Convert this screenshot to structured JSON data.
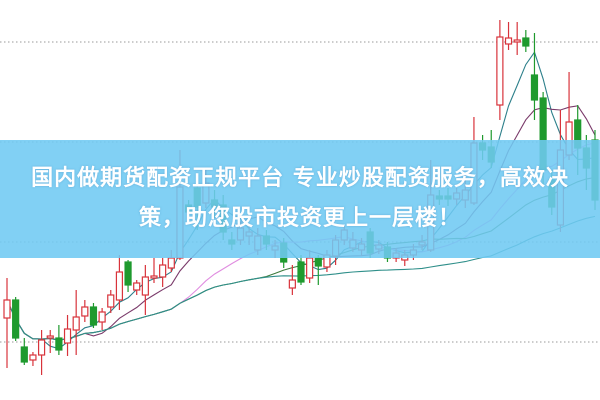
{
  "banner": {
    "text": "国内做期货配资正规平台 专业炒股配资服务，高效决策，助您股市投资更上一层楼！"
  },
  "chart_data": {
    "type": "candlestick",
    "title": "",
    "xlabel": "",
    "ylabel": "",
    "grid": "horizontal dotted",
    "colors": {
      "up": "#d8333b",
      "down": "#1f9a2e",
      "ma": [
        "#2c7f8a",
        "#7a3a6a",
        "#e08de0",
        "#3c7a3c",
        "#2f8f8a"
      ]
    },
    "moving_average_periods": [
      5,
      10,
      20,
      30,
      60
    ],
    "candles_ohlc": [
      [
        82,
        122,
        32,
        100
      ],
      [
        100,
        103,
        59,
        62
      ],
      [
        53,
        62,
        35,
        38
      ],
      [
        40,
        48,
        34,
        45
      ],
      [
        45,
        70,
        25,
        60
      ],
      [
        62,
        70,
        47,
        64
      ],
      [
        62,
        75,
        45,
        50
      ],
      [
        57,
        85,
        44,
        71
      ],
      [
        70,
        110,
        45,
        83
      ],
      [
        84,
        100,
        78,
        93
      ],
      [
        93,
        97,
        72,
        75
      ],
      [
        78,
        92,
        70,
        88
      ],
      [
        93,
        110,
        87,
        105
      ],
      [
        100,
        145,
        90,
        128
      ],
      [
        138,
        140,
        108,
        115
      ],
      [
        110,
        120,
        105,
        117
      ],
      [
        105,
        135,
        85,
        123
      ],
      [
        122,
        142,
        117,
        124
      ],
      [
        123,
        142,
        113,
        135
      ],
      [
        132,
        150,
        128,
        142
      ],
      [
        142,
        250,
        140,
        213
      ],
      [
        195,
        200,
        186,
        188
      ],
      [
        212,
        220,
        170,
        193
      ],
      [
        197,
        230,
        192,
        217
      ],
      [
        200,
        210,
        182,
        193
      ],
      [
        195,
        205,
        160,
        168
      ],
      [
        160,
        168,
        150,
        156
      ],
      [
        160,
        178,
        155,
        172
      ],
      [
        164,
        175,
        155,
        168
      ],
      [
        150,
        172,
        145,
        164
      ],
      [
        164,
        170,
        150,
        156
      ],
      [
        150,
        160,
        142,
        154
      ],
      [
        157,
        162,
        132,
        138
      ],
      [
        112,
        135,
        105,
        120
      ],
      [
        138,
        145,
        115,
        118
      ],
      [
        122,
        150,
        117,
        142
      ],
      [
        142,
        145,
        115,
        134
      ],
      [
        133,
        150,
        128,
        145
      ],
      [
        144,
        165,
        135,
        160
      ],
      [
        160,
        175,
        155,
        170
      ],
      [
        152,
        168,
        148,
        160
      ],
      [
        150,
        162,
        144,
        156
      ],
      [
        168,
        172,
        142,
        147
      ],
      [
        151,
        160,
        146,
        155
      ],
      [
        153,
        158,
        138,
        142
      ],
      [
        142,
        152,
        138,
        147
      ],
      [
        140,
        150,
        134,
        145
      ],
      [
        145,
        156,
        140,
        150
      ],
      [
        155,
        165,
        150,
        158
      ],
      [
        150,
        240,
        148,
        205
      ],
      [
        204,
        210,
        195,
        201
      ],
      [
        204,
        212,
        194,
        201
      ],
      [
        201,
        212,
        195,
        207
      ],
      [
        200,
        225,
        192,
        210
      ],
      [
        197,
        283,
        195,
        257
      ],
      [
        257,
        265,
        240,
        250
      ],
      [
        253,
        270,
        232,
        238
      ],
      [
        295,
        380,
        280,
        363
      ],
      [
        356,
        378,
        350,
        362
      ],
      [
        358,
        378,
        345,
        360
      ],
      [
        362,
        370,
        348,
        354
      ],
      [
        325,
        367,
        280,
        300
      ],
      [
        302,
        308,
        215,
        230
      ],
      [
        220,
        230,
        185,
        193
      ],
      [
        175,
        290,
        168,
        250
      ],
      [
        245,
        328,
        240,
        278
      ],
      [
        280,
        295,
        225,
        252
      ],
      [
        252,
        265,
        210,
        232
      ],
      [
        260,
        270,
        190,
        200
      ]
    ]
  }
}
